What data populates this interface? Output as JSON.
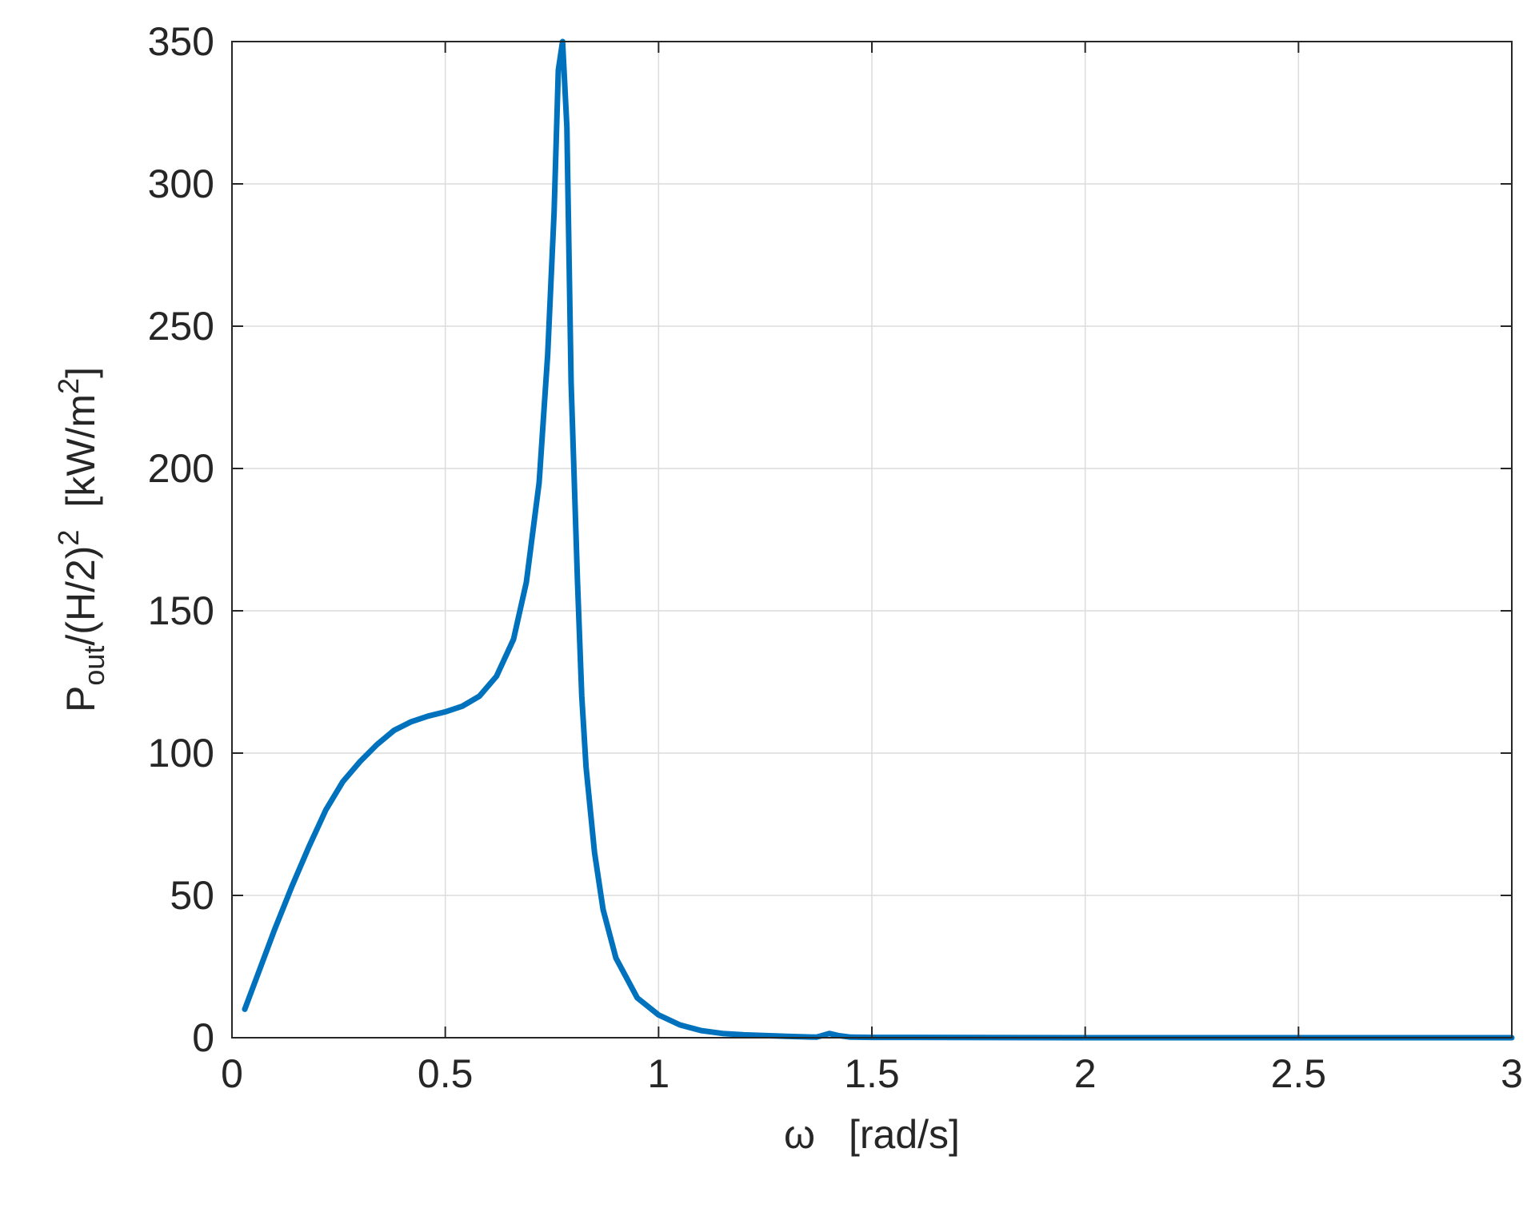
{
  "chart_data": {
    "type": "line",
    "title": "",
    "xlabel": {
      "symbol": "ω",
      "unit": "[rad/s]"
    },
    "ylabel": {
      "p": "P",
      "sub": "out",
      "mid": "/(H/2)",
      "sup2": "2",
      "unit_open": "[kW/m",
      "sup_unit": "2",
      "unit_close": "]"
    },
    "xlim": [
      0,
      3
    ],
    "ylim": [
      0,
      350
    ],
    "x_ticks": [
      0,
      0.5,
      1,
      1.5,
      2,
      2.5,
      3
    ],
    "x_tick_labels": [
      "0",
      "0.5",
      "1",
      "1.5",
      "2",
      "2.5",
      "3"
    ],
    "y_ticks": [
      0,
      50,
      100,
      150,
      200,
      250,
      300,
      350
    ],
    "y_tick_labels": [
      "0",
      "50",
      "100",
      "150",
      "200",
      "250",
      "300",
      "350"
    ],
    "grid": true,
    "line_color": "#0072BD",
    "series": [
      {
        "x": [
          0.03,
          0.06,
          0.1,
          0.14,
          0.18,
          0.22,
          0.26,
          0.3,
          0.34,
          0.38,
          0.42,
          0.46,
          0.5,
          0.54,
          0.58,
          0.62,
          0.66,
          0.69,
          0.72,
          0.74,
          0.755,
          0.765,
          0.775,
          0.785,
          0.795,
          0.81,
          0.82,
          0.83,
          0.85,
          0.87,
          0.9,
          0.95,
          1.0,
          1.05,
          1.1,
          1.15,
          1.2,
          1.3,
          1.37,
          1.38,
          1.4,
          1.42,
          1.45,
          1.5,
          2.0,
          2.5,
          3.0
        ],
        "y": [
          10,
          22,
          38,
          53,
          67,
          80,
          90,
          97,
          103,
          108,
          111,
          113,
          114.5,
          116.5,
          120,
          127,
          140,
          160,
          195,
          240,
          290,
          340,
          350,
          320,
          230,
          160,
          120,
          95,
          65,
          45,
          28,
          14,
          8,
          4.5,
          2.5,
          1.5,
          1,
          0.5,
          0.2,
          0.6,
          1.5,
          0.8,
          0.2,
          0.1,
          0,
          0,
          0
        ]
      }
    ]
  }
}
